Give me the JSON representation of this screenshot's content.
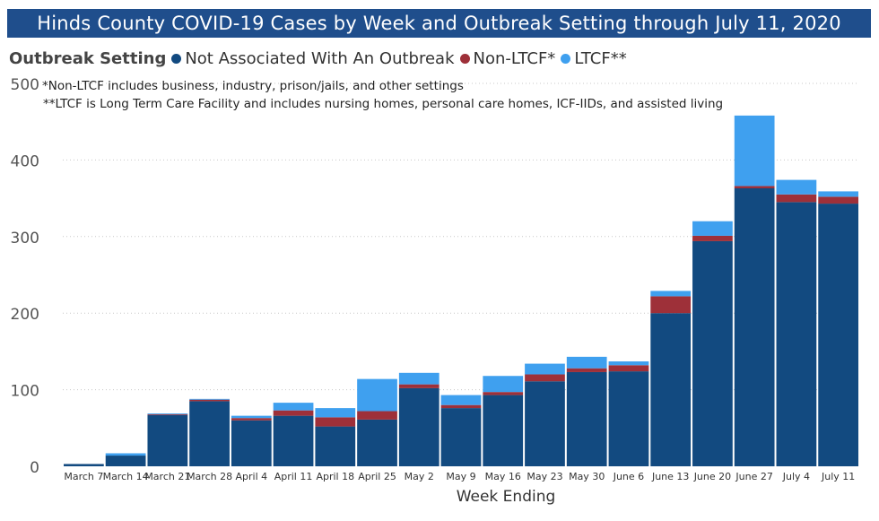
{
  "title": "Hinds County COVID-19 Cases by Week and Outbreak Setting through July 11, 2020",
  "legend": {
    "title": "Outbreak Setting",
    "items": [
      {
        "label": "Not Associated With An Outbreak",
        "color": "#124a80"
      },
      {
        "label": "Non-LTCF*",
        "color": "#9e3039"
      },
      {
        "label": "LTCF**",
        "color": "#3fa0ef"
      }
    ]
  },
  "notes": [
    "*Non-LTCF includes business, industry, prison/jails, and other settings",
    "**LTCF is Long Term Care Facility and includes nursing homes, personal care homes, ICF-IIDs, and assisted living"
  ],
  "chart_data": {
    "type": "bar",
    "stacked": true,
    "title": "Hinds County COVID-19 Cases by Week and Outbreak Setting through July 11, 2020",
    "xlabel": "Week Ending",
    "ylabel": "",
    "ylim": [
      0,
      500
    ],
    "yticks": [
      0,
      100,
      200,
      300,
      400,
      500
    ],
    "grid": true,
    "categories": [
      "March 7",
      "March 14",
      "March 21",
      "March 28",
      "April 4",
      "April 11",
      "April 18",
      "April 25",
      "May 2",
      "May 9",
      "May 16",
      "May 23",
      "May 30",
      "June 6",
      "June 13",
      "June 20",
      "June 27",
      "July 4",
      "July 11"
    ],
    "series": [
      {
        "name": "Not Associated With An Outbreak",
        "color": "#124a80",
        "values": [
          3,
          14,
          67,
          85,
          60,
          66,
          52,
          61,
          102,
          76,
          93,
          111,
          123,
          124,
          200,
          294,
          363,
          345,
          343
        ]
      },
      {
        "name": "Non-LTCF*",
        "color": "#9e3039",
        "values": [
          0,
          0,
          1,
          2,
          3,
          7,
          12,
          11,
          5,
          4,
          4,
          9,
          5,
          8,
          22,
          7,
          3,
          10,
          9
        ]
      },
      {
        "name": "LTCF**",
        "color": "#3fa0ef",
        "values": [
          0,
          3,
          1,
          1,
          3,
          10,
          12,
          42,
          15,
          13,
          21,
          14,
          15,
          5,
          7,
          19,
          92,
          19,
          7
        ]
      }
    ]
  }
}
